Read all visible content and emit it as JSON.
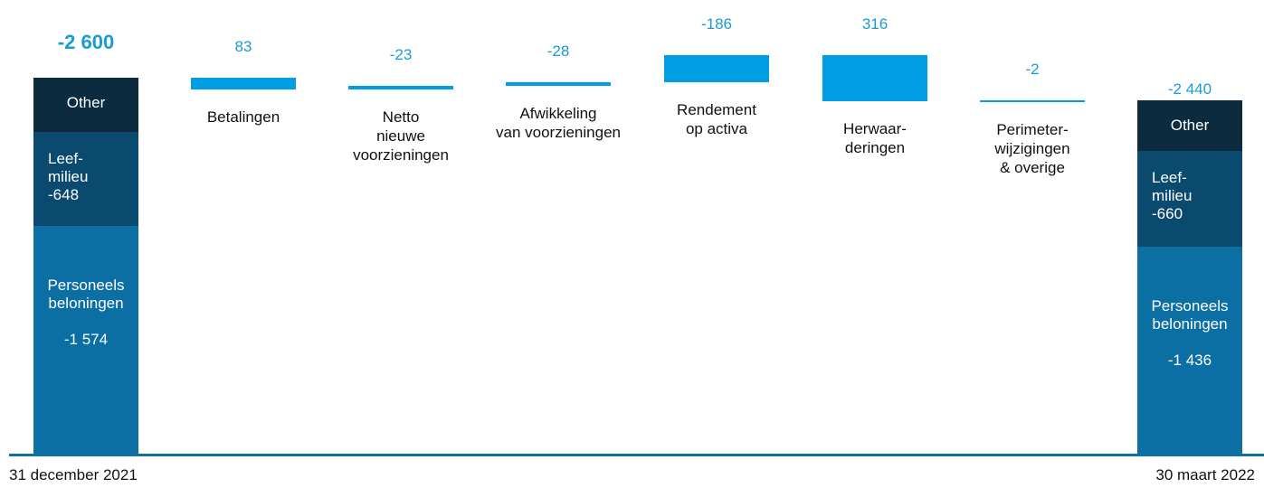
{
  "chart_data": {
    "type": "waterfall",
    "value_color": "#1a9ad6",
    "step_color": "#009fe3",
    "axis_color": "#0b6fa4",
    "start": {
      "label": "31 december 2021",
      "total": -2600,
      "total_label": "-2 600",
      "segments": [
        {
          "name": "Personeels\nbeloningen",
          "value": -1574,
          "value_label": "-1 574",
          "color": "#0b6fa4"
        },
        {
          "name": "Leef-\nmilieu",
          "value": -648,
          "color": "#0a4a6e"
        },
        {
          "name": "Other",
          "value": -378,
          "color": "#0d2b3e"
        }
      ]
    },
    "steps": {
      "categories": [
        "Betalingen",
        "Netto\nnieuwe\nvoorzieningen",
        "Afwikkeling\nvan voorzieningen",
        "Rendement\nop activa",
        "Herwaar-\nderingen",
        "Perimeter-\nwijzigingen\n& overige"
      ],
      "values": [
        83,
        -23,
        -28,
        -186,
        316,
        -2
      ]
    },
    "end": {
      "label": "30 maart 2022",
      "total": -2440,
      "total_label": "-2 440",
      "segments": [
        {
          "name": "Personeels\nbeloningen",
          "value": -1436,
          "value_label": "-1 436",
          "color": "#0b6fa4"
        },
        {
          "name": "Leef-\nmilieu",
          "value": -660,
          "color": "#0a4a6e"
        },
        {
          "name": "Other",
          "value": -344,
          "color": "#0d2b3e"
        }
      ]
    }
  }
}
